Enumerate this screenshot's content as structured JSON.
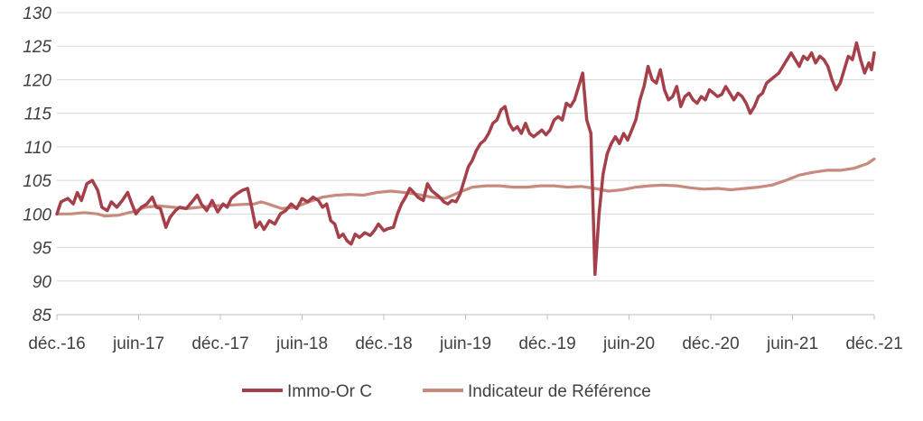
{
  "chart_data": {
    "type": "line",
    "title": "",
    "xlabel": "",
    "ylabel": "",
    "ylim": [
      85,
      130
    ],
    "yticks": [
      85,
      90,
      95,
      100,
      105,
      110,
      115,
      120,
      125,
      130
    ],
    "xlim": [
      0,
      60
    ],
    "xticks": [
      {
        "x": 0,
        "label": "déc.-16"
      },
      {
        "x": 6,
        "label": "juin-17"
      },
      {
        "x": 12,
        "label": "déc.-17"
      },
      {
        "x": 18,
        "label": "juin-18"
      },
      {
        "x": 24,
        "label": "déc.-18"
      },
      {
        "x": 30,
        "label": "juin-19"
      },
      {
        "x": 36,
        "label": "déc.-19"
      },
      {
        "x": 42,
        "label": "juin-20"
      },
      {
        "x": 48,
        "label": "déc.-20"
      },
      {
        "x": 54,
        "label": "juin-21"
      },
      {
        "x": 60,
        "label": "déc.-21"
      }
    ],
    "grid": true,
    "legend": "bottom",
    "series": [
      {
        "name": "Immo-Or C",
        "color": "#A5404A",
        "points": [
          [
            0,
            100
          ],
          [
            0.3,
            101.8
          ],
          [
            0.8,
            102.3
          ],
          [
            1.2,
            101.5
          ],
          [
            1.5,
            103.2
          ],
          [
            1.8,
            102.0
          ],
          [
            2.2,
            104.5
          ],
          [
            2.6,
            105.0
          ],
          [
            3.0,
            103.5
          ],
          [
            3.3,
            101.0
          ],
          [
            3.7,
            100.5
          ],
          [
            4.0,
            101.8
          ],
          [
            4.4,
            101.0
          ],
          [
            4.8,
            102.0
          ],
          [
            5.2,
            103.2
          ],
          [
            5.5,
            101.5
          ],
          [
            5.8,
            100.0
          ],
          [
            6.2,
            101.0
          ],
          [
            6.6,
            101.5
          ],
          [
            7.0,
            102.5
          ],
          [
            7.3,
            101.0
          ],
          [
            7.6,
            100.8
          ],
          [
            8.0,
            98.0
          ],
          [
            8.3,
            99.5
          ],
          [
            8.7,
            100.5
          ],
          [
            9.0,
            101.0
          ],
          [
            9.5,
            100.8
          ],
          [
            10.0,
            102.0
          ],
          [
            10.3,
            102.8
          ],
          [
            10.6,
            101.5
          ],
          [
            11.0,
            100.5
          ],
          [
            11.4,
            102.0
          ],
          [
            11.8,
            100.3
          ],
          [
            12.2,
            101.5
          ],
          [
            12.5,
            101.0
          ],
          [
            12.8,
            102.3
          ],
          [
            13.2,
            103.0
          ],
          [
            13.6,
            103.5
          ],
          [
            14.0,
            103.8
          ],
          [
            14.3,
            101.0
          ],
          [
            14.6,
            98.0
          ],
          [
            14.9,
            98.8
          ],
          [
            15.2,
            97.7
          ],
          [
            15.6,
            99.0
          ],
          [
            16.0,
            98.5
          ],
          [
            16.4,
            100.0
          ],
          [
            16.8,
            100.5
          ],
          [
            17.2,
            101.5
          ],
          [
            17.6,
            100.8
          ],
          [
            18.0,
            102.3
          ],
          [
            18.4,
            101.8
          ],
          [
            18.8,
            102.5
          ],
          [
            19.2,
            102.0
          ],
          [
            19.5,
            101.0
          ],
          [
            19.8,
            101.5
          ],
          [
            20.1,
            99.0
          ],
          [
            20.4,
            98.5
          ],
          [
            20.7,
            96.5
          ],
          [
            21.0,
            97.0
          ],
          [
            21.3,
            96.0
          ],
          [
            21.6,
            95.5
          ],
          [
            21.9,
            97.0
          ],
          [
            22.2,
            96.5
          ],
          [
            22.6,
            97.2
          ],
          [
            23.0,
            96.8
          ],
          [
            23.3,
            97.5
          ],
          [
            23.6,
            98.5
          ],
          [
            24.0,
            97.5
          ],
          [
            24.3,
            97.8
          ],
          [
            24.7,
            98.0
          ],
          [
            25.0,
            100.0
          ],
          [
            25.3,
            101.5
          ],
          [
            25.6,
            102.5
          ],
          [
            25.9,
            103.8
          ],
          [
            26.2,
            103.2
          ],
          [
            26.5,
            102.5
          ],
          [
            26.9,
            102.0
          ],
          [
            27.2,
            104.5
          ],
          [
            27.5,
            103.5
          ],
          [
            27.8,
            103.0
          ],
          [
            28.1,
            102.5
          ],
          [
            28.4,
            101.8
          ],
          [
            28.7,
            101.5
          ],
          [
            29.0,
            102.0
          ],
          [
            29.3,
            101.8
          ],
          [
            29.6,
            103.0
          ],
          [
            29.9,
            105.0
          ],
          [
            30.2,
            107.0
          ],
          [
            30.5,
            108.0
          ],
          [
            30.8,
            109.5
          ],
          [
            31.1,
            110.5
          ],
          [
            31.4,
            111.0
          ],
          [
            31.7,
            112.0
          ],
          [
            32.0,
            113.5
          ],
          [
            32.3,
            114.0
          ],
          [
            32.6,
            115.5
          ],
          [
            32.9,
            116.0
          ],
          [
            33.2,
            113.5
          ],
          [
            33.5,
            112.5
          ],
          [
            33.8,
            113.0
          ],
          [
            34.1,
            112.0
          ],
          [
            34.4,
            113.5
          ],
          [
            34.7,
            112.0
          ],
          [
            35.0,
            111.5
          ],
          [
            35.3,
            112.0
          ],
          [
            35.6,
            112.5
          ],
          [
            35.9,
            111.8
          ],
          [
            36.2,
            112.5
          ],
          [
            36.5,
            114.0
          ],
          [
            36.8,
            114.5
          ],
          [
            37.1,
            114.0
          ],
          [
            37.4,
            116.5
          ],
          [
            37.7,
            116.0
          ],
          [
            38.0,
            117.0
          ],
          [
            38.3,
            119.0
          ],
          [
            38.6,
            121.0
          ],
          [
            38.9,
            114.0
          ],
          [
            39.2,
            112.0
          ],
          [
            39.5,
            91.0
          ],
          [
            39.8,
            100.0
          ],
          [
            40.1,
            106.0
          ],
          [
            40.4,
            109.0
          ],
          [
            40.7,
            110.5
          ],
          [
            41.0,
            111.5
          ],
          [
            41.3,
            110.5
          ],
          [
            41.6,
            112.0
          ],
          [
            41.9,
            111.0
          ],
          [
            42.2,
            112.5
          ],
          [
            42.5,
            114.0
          ],
          [
            42.8,
            117.0
          ],
          [
            43.1,
            119.0
          ],
          [
            43.4,
            122.0
          ],
          [
            43.7,
            120.0
          ],
          [
            44.0,
            119.5
          ],
          [
            44.3,
            121.5
          ],
          [
            44.6,
            118.5
          ],
          [
            44.9,
            117.0
          ],
          [
            45.2,
            117.5
          ],
          [
            45.5,
            119.0
          ],
          [
            45.8,
            116.0
          ],
          [
            46.1,
            117.5
          ],
          [
            46.4,
            118.0
          ],
          [
            46.7,
            117.0
          ],
          [
            47.0,
            116.5
          ],
          [
            47.3,
            117.5
          ],
          [
            47.6,
            117.0
          ],
          [
            47.9,
            118.5
          ],
          [
            48.2,
            118.0
          ],
          [
            48.5,
            117.5
          ],
          [
            48.8,
            117.8
          ],
          [
            49.1,
            119.0
          ],
          [
            49.4,
            118.0
          ],
          [
            49.7,
            117.0
          ],
          [
            50.0,
            118.0
          ],
          [
            50.3,
            117.5
          ],
          [
            50.6,
            116.5
          ],
          [
            50.9,
            115.0
          ],
          [
            51.2,
            116.0
          ],
          [
            51.5,
            117.5
          ],
          [
            51.8,
            118.0
          ],
          [
            52.1,
            119.5
          ],
          [
            52.4,
            120.0
          ],
          [
            52.7,
            120.5
          ],
          [
            53.0,
            121.0
          ],
          [
            53.3,
            122.0
          ],
          [
            53.6,
            123.0
          ],
          [
            53.9,
            124.0
          ],
          [
            54.2,
            123.0
          ],
          [
            54.5,
            122.0
          ],
          [
            54.8,
            123.5
          ],
          [
            55.1,
            123.0
          ],
          [
            55.4,
            124.0
          ],
          [
            55.7,
            122.5
          ],
          [
            56.0,
            123.5
          ],
          [
            56.3,
            123.0
          ],
          [
            56.6,
            122.0
          ],
          [
            56.9,
            120.0
          ],
          [
            57.2,
            118.5
          ],
          [
            57.5,
            119.5
          ],
          [
            57.8,
            121.5
          ],
          [
            58.1,
            123.5
          ],
          [
            58.4,
            123.0
          ],
          [
            58.7,
            125.5
          ],
          [
            59.0,
            123.0
          ],
          [
            59.3,
            121.0
          ],
          [
            59.6,
            122.5
          ],
          [
            59.8,
            121.5
          ],
          [
            60.0,
            124.0
          ]
        ]
      },
      {
        "name": "Indicateur de Référence",
        "color": "#C98A7E",
        "points": [
          [
            0,
            100
          ],
          [
            1,
            100
          ],
          [
            2,
            100.2
          ],
          [
            3,
            100
          ],
          [
            3.5,
            99.7
          ],
          [
            4.5,
            99.8
          ],
          [
            5.5,
            100.3
          ],
          [
            6.5,
            101.0
          ],
          [
            7.5,
            101.2
          ],
          [
            8.5,
            101.0
          ],
          [
            9.5,
            100.8
          ],
          [
            10.5,
            101.0
          ],
          [
            11.5,
            101.2
          ],
          [
            12.5,
            101.3
          ],
          [
            13.5,
            101.4
          ],
          [
            14.5,
            101.5
          ],
          [
            15.0,
            101.8
          ],
          [
            15.5,
            101.5
          ],
          [
            16.5,
            100.8
          ],
          [
            17.5,
            101.0
          ],
          [
            18.5,
            101.8
          ],
          [
            19.5,
            102.5
          ],
          [
            20.5,
            102.8
          ],
          [
            21.5,
            102.9
          ],
          [
            22.5,
            102.8
          ],
          [
            23.5,
            103.2
          ],
          [
            24.5,
            103.4
          ],
          [
            25.5,
            103.2
          ],
          [
            26.5,
            102.9
          ],
          [
            27.5,
            102.5
          ],
          [
            28.5,
            102.3
          ],
          [
            29.5,
            103.2
          ],
          [
            30.5,
            104.0
          ],
          [
            31.5,
            104.2
          ],
          [
            32.5,
            104.2
          ],
          [
            33.5,
            104.0
          ],
          [
            34.5,
            104.0
          ],
          [
            35.5,
            104.2
          ],
          [
            36.5,
            104.2
          ],
          [
            37.5,
            104.0
          ],
          [
            38.5,
            104.1
          ],
          [
            39.5,
            103.8
          ],
          [
            40.5,
            103.4
          ],
          [
            41.5,
            103.6
          ],
          [
            42.5,
            104.0
          ],
          [
            43.5,
            104.2
          ],
          [
            44.5,
            104.3
          ],
          [
            45.5,
            104.2
          ],
          [
            46.5,
            103.9
          ],
          [
            47.5,
            103.7
          ],
          [
            48.5,
            103.8
          ],
          [
            49.5,
            103.6
          ],
          [
            50.5,
            103.8
          ],
          [
            51.5,
            104.0
          ],
          [
            52.5,
            104.3
          ],
          [
            53.5,
            105.0
          ],
          [
            54.5,
            105.8
          ],
          [
            55.5,
            106.2
          ],
          [
            56.5,
            106.5
          ],
          [
            57.5,
            106.5
          ],
          [
            58.5,
            106.8
          ],
          [
            59.5,
            107.5
          ],
          [
            60.0,
            108.2
          ]
        ]
      }
    ]
  }
}
